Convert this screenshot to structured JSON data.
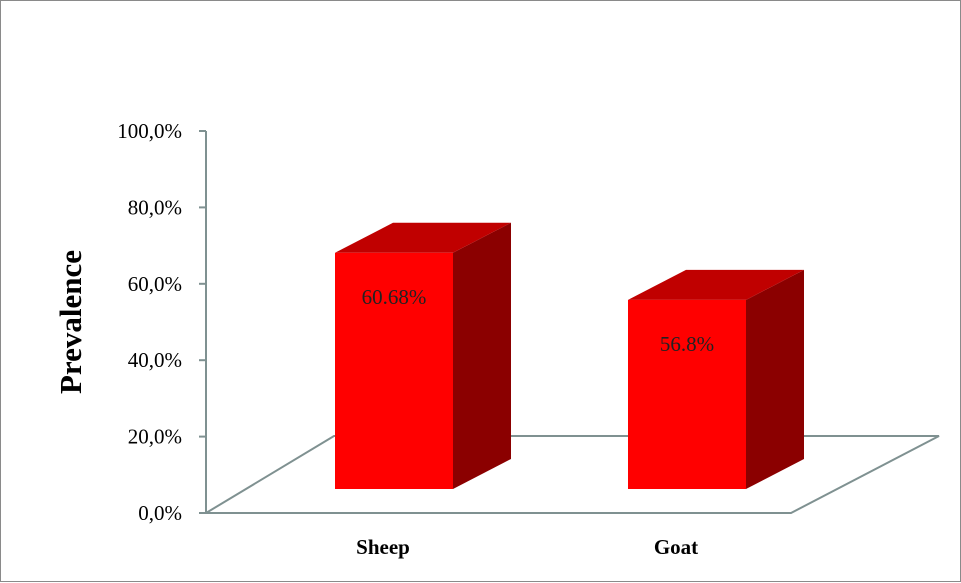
{
  "chart_data": {
    "type": "bar",
    "style": "3d-column",
    "title": "",
    "xlabel": "",
    "ylabel": "Prevalence",
    "ylim": [
      0,
      100
    ],
    "yticks": [
      "0,0%",
      "20,0%",
      "40,0%",
      "60,0%",
      "80,0%",
      "100,0%"
    ],
    "categories": [
      "Sheep",
      "Goat"
    ],
    "values": [
      60.68,
      56.8
    ],
    "data_labels": [
      "60.68%",
      "56.8%"
    ],
    "grid": false,
    "legend": "none",
    "colors": {
      "bar_front": "#ff0000",
      "bar_top": "#c00000",
      "bar_side": "#8b0000",
      "axis": "#7f9191"
    }
  }
}
